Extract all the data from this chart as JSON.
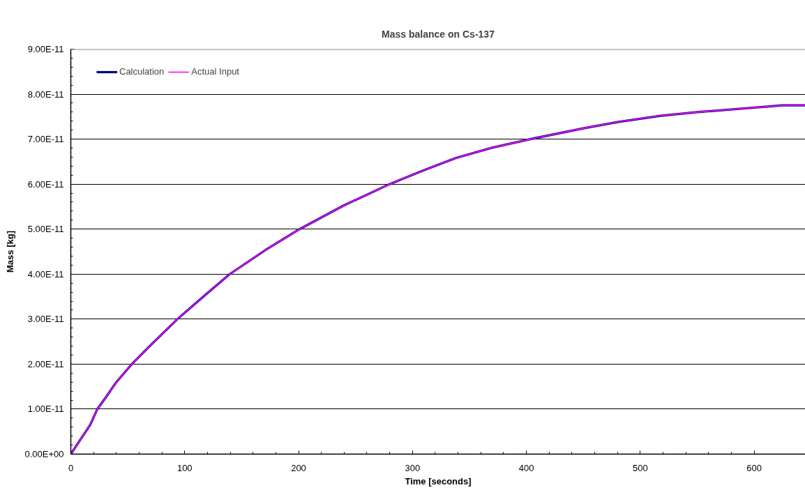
{
  "chart_data": {
    "type": "line",
    "title": "Mass balance on Cs-137",
    "xlabel": "Time [seconds]",
    "ylabel": "Mass [kg]",
    "x": [
      0,
      10,
      17,
      23.3,
      31,
      40,
      53.6,
      70,
      93.6,
      115,
      139.6,
      170,
      200.9,
      240,
      280,
      310,
      338,
      370,
      403.5,
      450,
      480,
      517.8,
      550,
      585,
      610,
      625,
      645
    ],
    "series": [
      {
        "name": "Calculation",
        "color": "#000080",
        "values": [
          0,
          3.8e-12,
          6.5e-12,
          1e-11,
          1.27e-11,
          1.6e-11,
          2e-11,
          2.42e-11,
          3e-11,
          3.47e-11,
          4e-11,
          4.52e-11,
          5e-11,
          5.53e-11,
          6e-11,
          6.31e-11,
          6.58e-11,
          6.81e-11,
          7e-11,
          7.24e-11,
          7.38e-11,
          7.52e-11,
          7.6e-11,
          7.67e-11,
          7.72e-11,
          7.75e-11,
          7.75e-11
        ]
      },
      {
        "name": "Actual Input",
        "color": "#ff00ff",
        "values": [
          0,
          3.8e-12,
          6.5e-12,
          1e-11,
          1.27e-11,
          1.6e-11,
          2e-11,
          2.42e-11,
          3e-11,
          3.47e-11,
          4e-11,
          4.52e-11,
          5e-11,
          5.53e-11,
          6e-11,
          6.31e-11,
          6.58e-11,
          6.81e-11,
          7e-11,
          7.24e-11,
          7.38e-11,
          7.52e-11,
          7.6e-11,
          7.67e-11,
          7.72e-11,
          7.75e-11,
          7.75e-11
        ]
      }
    ],
    "xlim": [
      0,
      645
    ],
    "xticks": [
      0,
      100,
      200,
      300,
      400,
      500,
      600
    ],
    "ylim": [
      0,
      9e-11
    ],
    "yticks": [
      {
        "value": 0,
        "label": "0.00E+00"
      },
      {
        "value": 1e-11,
        "label": "1.00E-11"
      },
      {
        "value": 2e-11,
        "label": "2.00E-11"
      },
      {
        "value": 3e-11,
        "label": "3.00E-11"
      },
      {
        "value": 4e-11,
        "label": "4.00E-11"
      },
      {
        "value": 5e-11,
        "label": "5.00E-11"
      },
      {
        "value": 6e-11,
        "label": "6.00E-11"
      },
      {
        "value": 7e-11,
        "label": "7.00E-11"
      },
      {
        "value": 8e-11,
        "label": "8.00E-11"
      },
      {
        "value": 9e-11,
        "label": "9.00E-11"
      }
    ],
    "grid": "y",
    "legend": "top left"
  }
}
